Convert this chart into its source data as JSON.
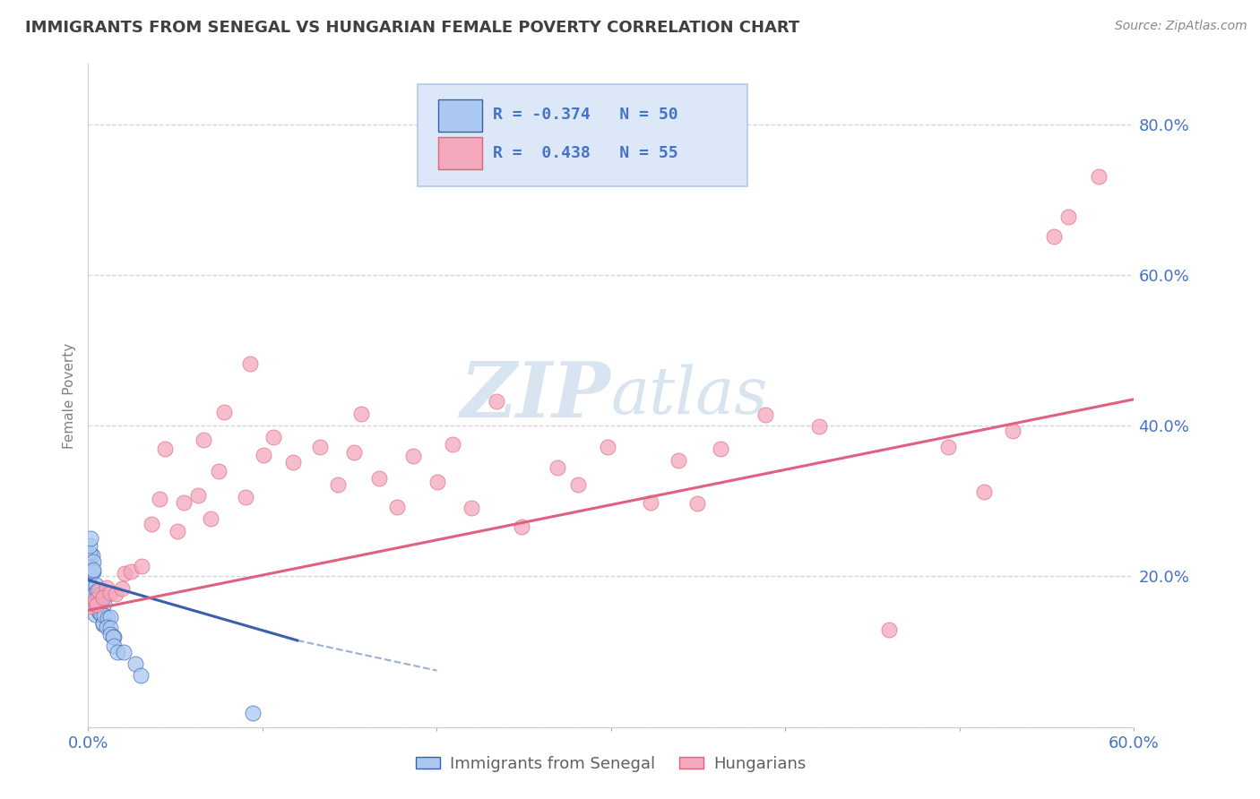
{
  "title": "IMMIGRANTS FROM SENEGAL VS HUNGARIAN FEMALE POVERTY CORRELATION CHART",
  "source": "Source: ZipAtlas.com",
  "ylabel": "Female Poverty",
  "xlim": [
    0.0,
    0.6
  ],
  "ylim": [
    0.0,
    0.88
  ],
  "xticks": [
    0.0,
    0.1,
    0.2,
    0.3,
    0.4,
    0.5,
    0.6
  ],
  "xticklabels": [
    "0.0%",
    "",
    "",
    "",
    "",
    "",
    "60.0%"
  ],
  "yticks": [
    0.0,
    0.2,
    0.4,
    0.6,
    0.8
  ],
  "yticklabels": [
    "",
    "20.0%",
    "40.0%",
    "60.0%",
    "80.0%"
  ],
  "series1_label": "Immigrants from Senegal",
  "series1_color": "#aac8f0",
  "series1_R": -0.374,
  "series1_N": 50,
  "series1_line_color": "#3a5fac",
  "series2_label": "Hungarians",
  "series2_color": "#f4a8bc",
  "series2_R": 0.438,
  "series2_N": 55,
  "series2_line_color": "#e06080",
  "grid_color": "#ccccdd",
  "background_color": "#ffffff",
  "title_color": "#404040",
  "axis_label_color": "#808080",
  "tick_color": "#4472c4",
  "legend_bg_color": "#dce8f8",
  "legend_border_color": "#b0c8e8",
  "watermark_color": "#d8e4f0",
  "series1_x": [
    0.001,
    0.001,
    0.001,
    0.001,
    0.001,
    0.001,
    0.001,
    0.002,
    0.002,
    0.002,
    0.002,
    0.002,
    0.002,
    0.003,
    0.003,
    0.003,
    0.003,
    0.003,
    0.004,
    0.004,
    0.004,
    0.004,
    0.005,
    0.005,
    0.005,
    0.005,
    0.006,
    0.006,
    0.007,
    0.007,
    0.007,
    0.008,
    0.008,
    0.008,
    0.009,
    0.009,
    0.01,
    0.01,
    0.011,
    0.011,
    0.012,
    0.013,
    0.014,
    0.015,
    0.016,
    0.018,
    0.02,
    0.025,
    0.03,
    0.095
  ],
  "series1_y": [
    0.22,
    0.23,
    0.24,
    0.25,
    0.2,
    0.19,
    0.18,
    0.21,
    0.22,
    0.2,
    0.19,
    0.18,
    0.17,
    0.2,
    0.21,
    0.19,
    0.18,
    0.17,
    0.19,
    0.18,
    0.17,
    0.16,
    0.18,
    0.17,
    0.16,
    0.15,
    0.17,
    0.16,
    0.17,
    0.16,
    0.15,
    0.16,
    0.15,
    0.14,
    0.15,
    0.14,
    0.15,
    0.14,
    0.14,
    0.13,
    0.13,
    0.12,
    0.12,
    0.12,
    0.11,
    0.1,
    0.09,
    0.08,
    0.07,
    0.02
  ],
  "series2_x": [
    0.002,
    0.003,
    0.005,
    0.007,
    0.01,
    0.012,
    0.015,
    0.018,
    0.02,
    0.022,
    0.025,
    0.03,
    0.035,
    0.04,
    0.045,
    0.05,
    0.055,
    0.06,
    0.065,
    0.07,
    0.075,
    0.08,
    0.09,
    0.095,
    0.1,
    0.11,
    0.12,
    0.13,
    0.14,
    0.15,
    0.16,
    0.17,
    0.18,
    0.19,
    0.2,
    0.21,
    0.22,
    0.235,
    0.25,
    0.265,
    0.28,
    0.3,
    0.32,
    0.34,
    0.35,
    0.36,
    0.39,
    0.42,
    0.46,
    0.49,
    0.51,
    0.53,
    0.55,
    0.565,
    0.58
  ],
  "series2_y": [
    0.15,
    0.17,
    0.16,
    0.18,
    0.18,
    0.17,
    0.19,
    0.18,
    0.19,
    0.2,
    0.22,
    0.22,
    0.26,
    0.3,
    0.35,
    0.26,
    0.32,
    0.3,
    0.38,
    0.28,
    0.35,
    0.42,
    0.3,
    0.48,
    0.36,
    0.38,
    0.35,
    0.38,
    0.32,
    0.36,
    0.4,
    0.33,
    0.3,
    0.35,
    0.32,
    0.38,
    0.3,
    0.42,
    0.28,
    0.35,
    0.32,
    0.38,
    0.3,
    0.35,
    0.3,
    0.38,
    0.42,
    0.4,
    0.12,
    0.38,
    0.3,
    0.4,
    0.64,
    0.66,
    0.72
  ],
  "line1_x0": 0.0,
  "line1_x1": 0.12,
  "line1_y0": 0.195,
  "line1_y1": 0.115,
  "line2_x0": 0.0,
  "line2_x1": 0.6,
  "line2_y0": 0.155,
  "line2_y1": 0.435
}
